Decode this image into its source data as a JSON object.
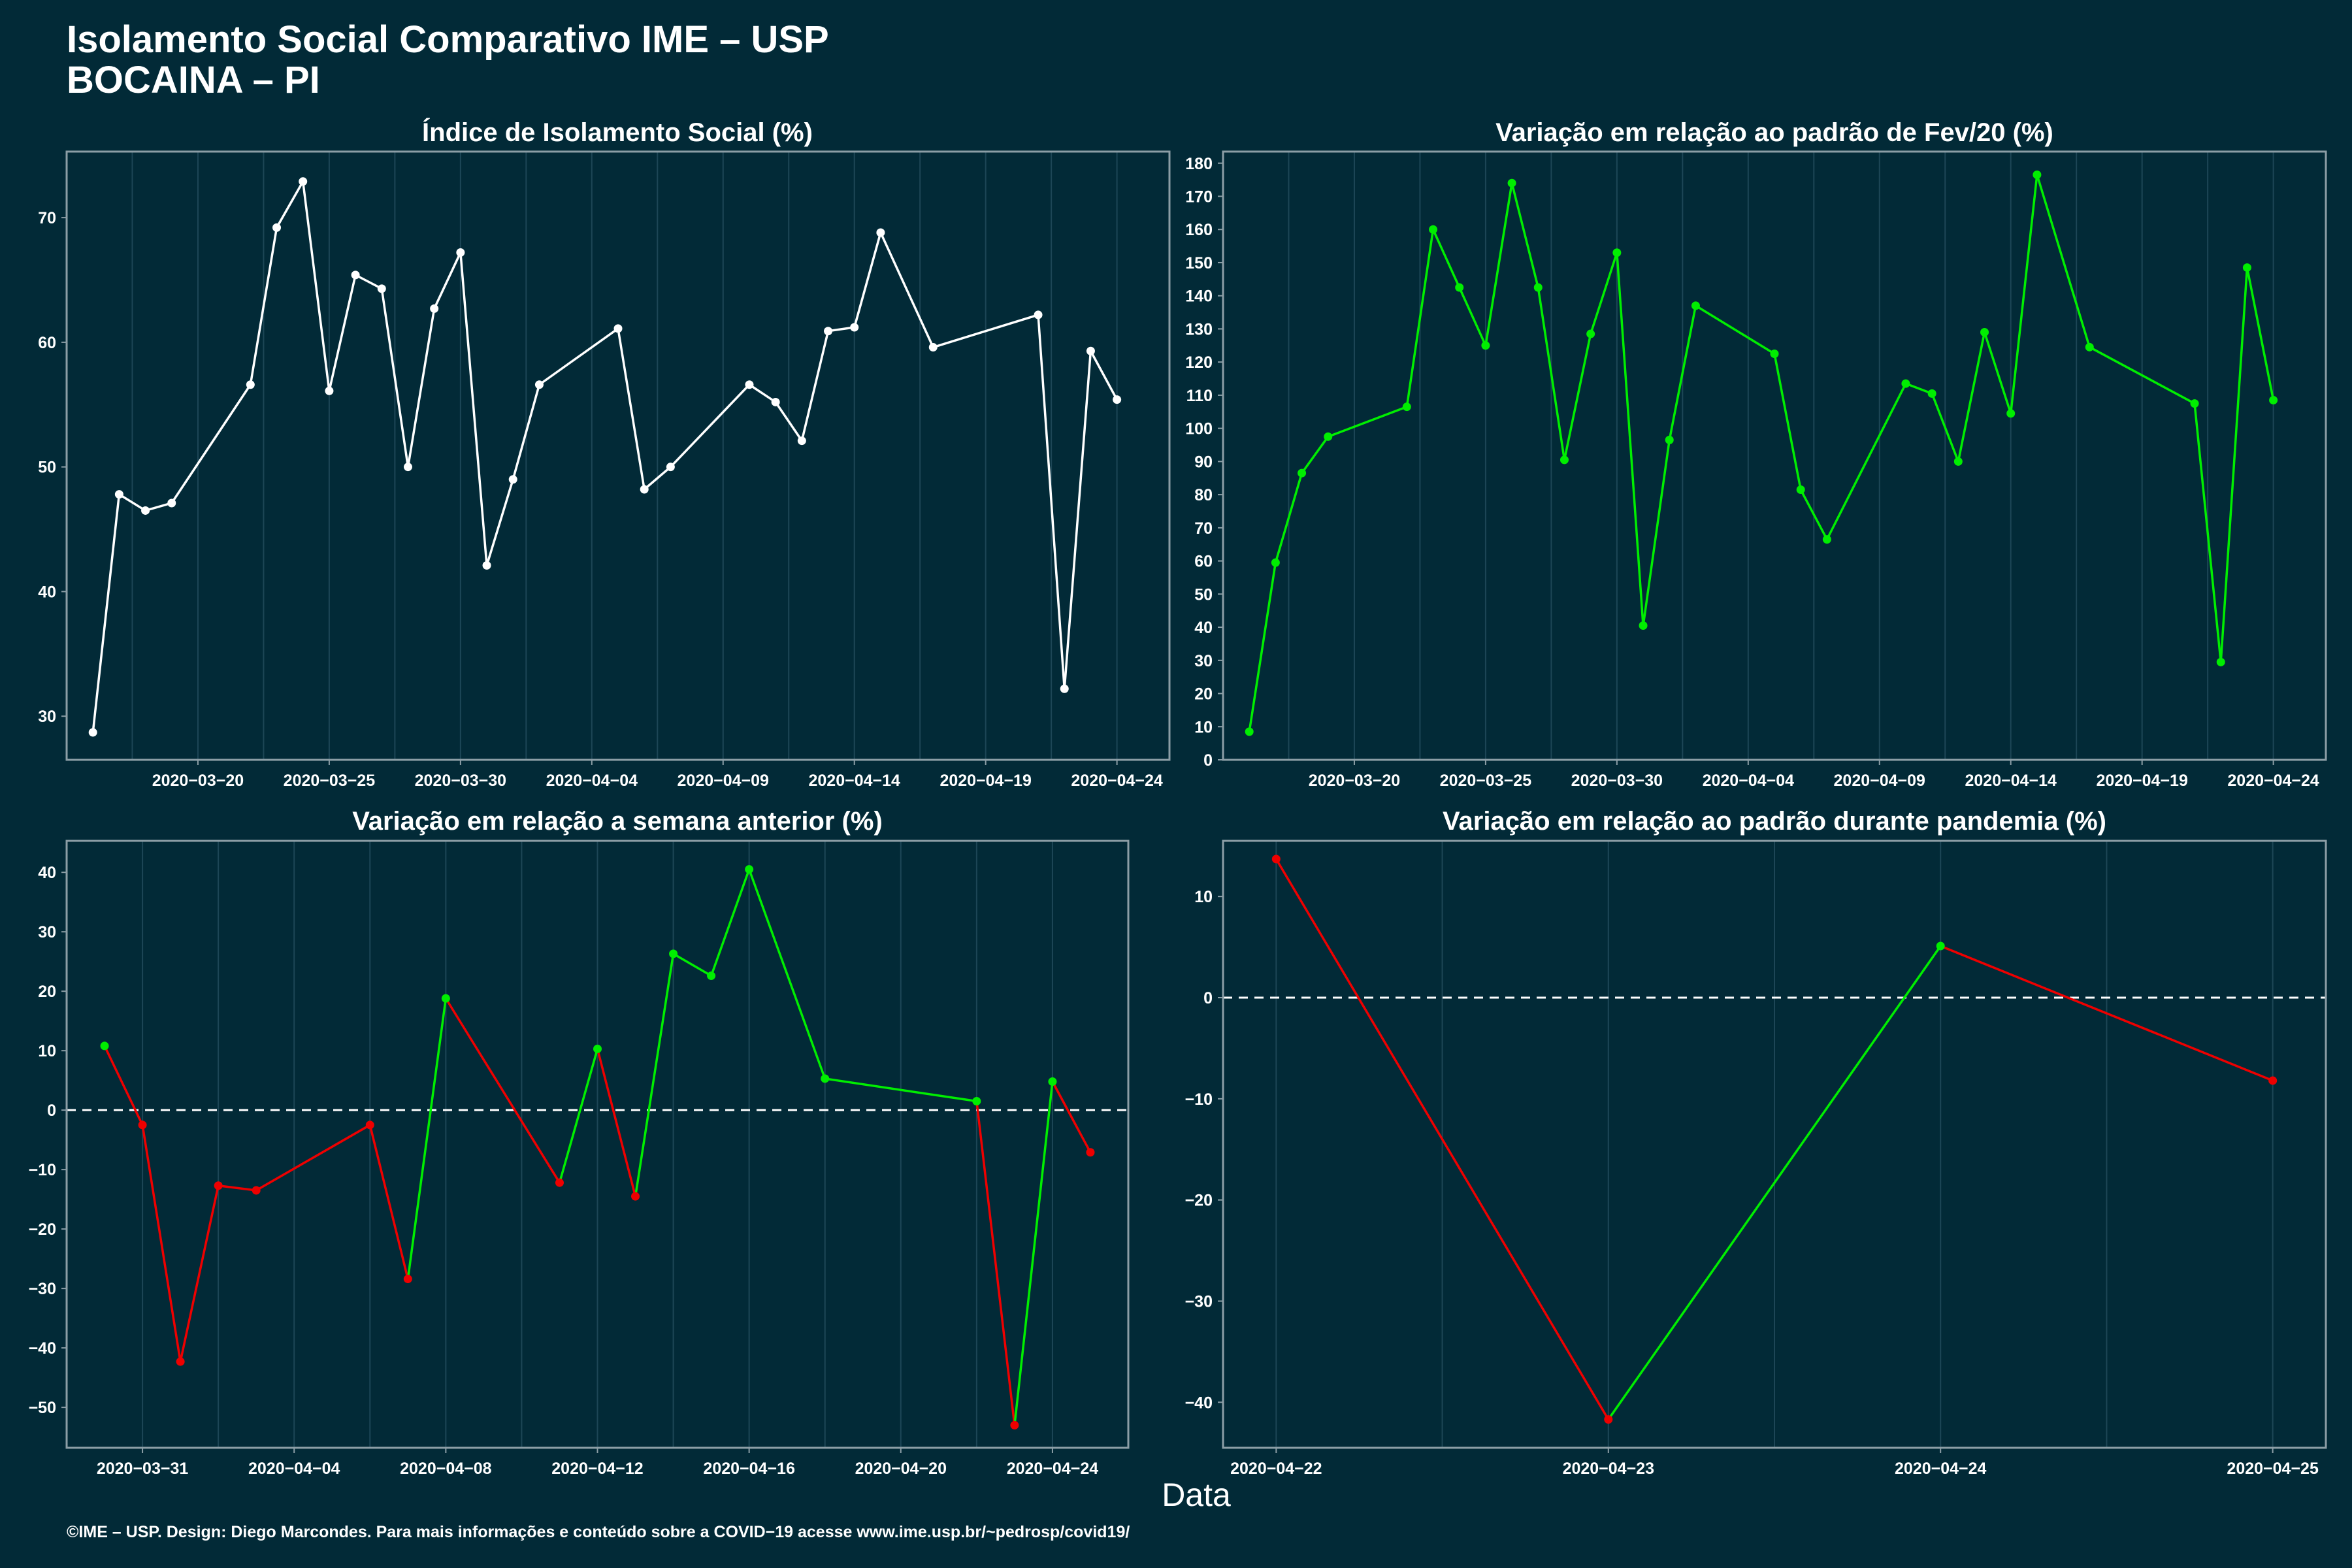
{
  "title_line1": "Isolamento Social Comparativo IME – USP",
  "title_line2": "BOCAINA – PI",
  "xlabel": "Data",
  "footer": "©IME – USP. Design: Diego Marcondes. Para mais informações e conteúdo sobre a COVID−19 acesse www.ime.usp.br/~pedrosp/covid19/",
  "colors": {
    "background": "#022a37",
    "panel_border": "#8c9ea6",
    "grid": "#1d4656",
    "white": "#ffffff",
    "green": "#00ee00",
    "red": "#ee0000"
  },
  "chart_data": [
    {
      "id": "p1",
      "type": "line",
      "title": "Índice de Isolamento Social (%)",
      "xlim": [
        "2020-03-15",
        "2020-04-26"
      ],
      "ylim": [
        26.5,
        75.3
      ],
      "yticks": [
        30,
        40,
        50,
        60,
        70
      ],
      "xticks": [
        "2020-03-20",
        "2020-03-25",
        "2020-03-30",
        "2020-04-04",
        "2020-04-09",
        "2020-04-14",
        "2020-04-19",
        "2020-04-24"
      ],
      "zero_line": false,
      "points": [
        [
          "2020-03-16",
          28.7,
          "white"
        ],
        [
          "2020-03-17",
          47.8,
          "white"
        ],
        [
          "2020-03-18",
          46.5,
          "white"
        ],
        [
          "2020-03-19",
          47.1,
          "white"
        ],
        [
          "2020-03-22",
          56.6,
          "white"
        ],
        [
          "2020-03-23",
          69.2,
          "white"
        ],
        [
          "2020-03-24",
          72.9,
          "white"
        ],
        [
          "2020-03-25",
          56.1,
          "white"
        ],
        [
          "2020-03-26",
          65.4,
          "white"
        ],
        [
          "2020-03-27",
          64.3,
          "white"
        ],
        [
          "2020-03-28",
          50.0,
          "white"
        ],
        [
          "2020-03-29",
          62.7,
          "white"
        ],
        [
          "2020-03-30",
          67.2,
          "white"
        ],
        [
          "2020-03-31",
          42.1,
          "white"
        ],
        [
          "2020-04-01",
          49.0,
          "white"
        ],
        [
          "2020-04-02",
          56.6,
          "white"
        ],
        [
          "2020-04-05",
          61.1,
          "white"
        ],
        [
          "2020-04-06",
          48.2,
          "white"
        ],
        [
          "2020-04-07",
          50.0,
          "white"
        ],
        [
          "2020-04-10",
          56.6,
          "white"
        ],
        [
          "2020-04-11",
          55.2,
          "white"
        ],
        [
          "2020-04-12",
          52.1,
          "white"
        ],
        [
          "2020-04-13",
          60.9,
          "white"
        ],
        [
          "2020-04-14",
          61.2,
          "white"
        ],
        [
          "2020-04-15",
          68.8,
          "white"
        ],
        [
          "2020-04-17",
          59.6,
          "white"
        ],
        [
          "2020-04-21",
          62.2,
          "white"
        ],
        [
          "2020-04-22",
          32.2,
          "white"
        ],
        [
          "2020-04-23",
          59.3,
          "white"
        ],
        [
          "2020-04-24",
          55.4,
          "white"
        ]
      ]
    },
    {
      "id": "p2",
      "type": "line",
      "title": "Variação em relação ao padrão de Fev/20 (%)",
      "xlim": [
        "2020-03-15",
        "2020-04-26"
      ],
      "ylim": [
        0,
        183.5
      ],
      "yticks": [
        0,
        10,
        20,
        30,
        40,
        50,
        60,
        70,
        80,
        90,
        100,
        110,
        120,
        130,
        140,
        150,
        160,
        170,
        180
      ],
      "xticks": [
        "2020-03-20",
        "2020-03-25",
        "2020-03-30",
        "2020-04-04",
        "2020-04-09",
        "2020-04-14",
        "2020-04-19",
        "2020-04-24"
      ],
      "zero_line": false,
      "points": [
        [
          "2020-03-16",
          8.5,
          "green"
        ],
        [
          "2020-03-17",
          59.5,
          "green"
        ],
        [
          "2020-03-18",
          86.5,
          "green"
        ],
        [
          "2020-03-19",
          97.5,
          "green"
        ],
        [
          "2020-03-22",
          106.5,
          "green"
        ],
        [
          "2020-03-23",
          160.0,
          "green"
        ],
        [
          "2020-03-24",
          142.5,
          "green"
        ],
        [
          "2020-03-25",
          125.0,
          "green"
        ],
        [
          "2020-03-26",
          174.0,
          "green"
        ],
        [
          "2020-03-27",
          142.5,
          "green"
        ],
        [
          "2020-03-28",
          90.5,
          "green"
        ],
        [
          "2020-03-29",
          128.5,
          "green"
        ],
        [
          "2020-03-30",
          153.0,
          "green"
        ],
        [
          "2020-03-31",
          40.5,
          "green"
        ],
        [
          "2020-04-01",
          96.5,
          "green"
        ],
        [
          "2020-04-02",
          137.0,
          "green"
        ],
        [
          "2020-04-05",
          122.5,
          "green"
        ],
        [
          "2020-04-06",
          81.5,
          "green"
        ],
        [
          "2020-04-07",
          66.5,
          "green"
        ],
        [
          "2020-04-10",
          113.5,
          "green"
        ],
        [
          "2020-04-11",
          110.5,
          "green"
        ],
        [
          "2020-04-12",
          90.0,
          "green"
        ],
        [
          "2020-04-13",
          129.0,
          "green"
        ],
        [
          "2020-04-14",
          104.5,
          "green"
        ],
        [
          "2020-04-15",
          176.5,
          "green"
        ],
        [
          "2020-04-17",
          124.5,
          "green"
        ],
        [
          "2020-04-21",
          107.5,
          "green"
        ],
        [
          "2020-04-22",
          29.5,
          "green"
        ],
        [
          "2020-04-23",
          148.5,
          "green"
        ],
        [
          "2020-04-24",
          108.5,
          "green"
        ]
      ]
    },
    {
      "id": "p3",
      "type": "line",
      "title": "Variação em relação a semana anterior (%)",
      "xlim": [
        "2020-03-29",
        "2020-04-26"
      ],
      "ylim": [
        -56.8,
        45.3
      ],
      "yticks": [
        -50,
        -40,
        -30,
        -20,
        -10,
        0,
        10,
        20,
        30,
        40
      ],
      "xticks": [
        "2020-03-31",
        "2020-04-04",
        "2020-04-08",
        "2020-04-12",
        "2020-04-16",
        "2020-04-20",
        "2020-04-24"
      ],
      "zero_line": true,
      "points": [
        [
          "2020-03-30",
          10.8,
          "green"
        ],
        [
          "2020-03-31",
          -2.5,
          "red"
        ],
        [
          "2020-04-01",
          -42.3,
          "red"
        ],
        [
          "2020-04-02",
          -12.7,
          "red"
        ],
        [
          "2020-04-03",
          -13.5,
          "red"
        ],
        [
          "2020-04-06",
          -2.5,
          "red"
        ],
        [
          "2020-04-07",
          -28.4,
          "red"
        ],
        [
          "2020-04-08",
          18.8,
          "green"
        ],
        [
          "2020-04-11",
          -12.2,
          "red"
        ],
        [
          "2020-04-12",
          10.3,
          "green"
        ],
        [
          "2020-04-13",
          -14.5,
          "red"
        ],
        [
          "2020-04-14",
          26.3,
          "green"
        ],
        [
          "2020-04-15",
          22.6,
          "green"
        ],
        [
          "2020-04-16",
          40.5,
          "green"
        ],
        [
          "2020-04-18",
          5.3,
          "green"
        ],
        [
          "2020-04-22",
          1.5,
          "green"
        ],
        [
          "2020-04-23",
          -53.0,
          "red"
        ],
        [
          "2020-04-24",
          4.8,
          "green"
        ],
        [
          "2020-04-25",
          -7.1,
          "red"
        ]
      ]
    },
    {
      "id": "p4",
      "type": "line",
      "title": "Variação em relação ao padrão durante pandemia (%)",
      "xlim": [
        "2020-04-21.84",
        "2020-04-25.16"
      ],
      "ylim": [
        -44.5,
        15.5
      ],
      "yticks": [
        -40,
        -30,
        -20,
        -10,
        0,
        10
      ],
      "xticks": [
        "2020-04-22",
        "2020-04-23",
        "2020-04-24",
        "2020-04-25"
      ],
      "zero_line": true,
      "points": [
        [
          "2020-04-22",
          13.7,
          "red"
        ],
        [
          "2020-04-23",
          -41.7,
          "red"
        ],
        [
          "2020-04-24",
          5.1,
          "green"
        ],
        [
          "2020-04-25",
          -8.2,
          "red"
        ]
      ]
    }
  ]
}
